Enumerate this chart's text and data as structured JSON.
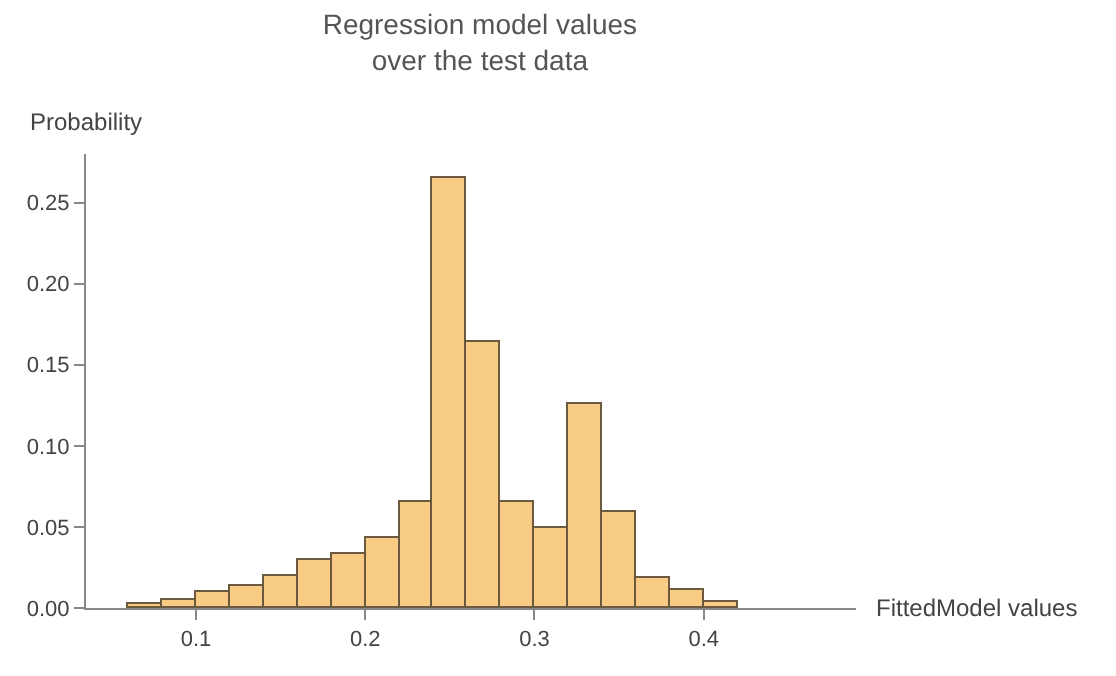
{
  "chart_data": {
    "type": "histogram",
    "title": "Regression model values\nover the test data",
    "xlabel": "FittedModel values",
    "ylabel": "Probability",
    "bins": [
      0.06,
      0.08,
      0.1,
      0.12,
      0.14,
      0.16,
      0.18,
      0.2,
      0.22,
      0.24,
      0.26,
      0.28,
      0.3,
      0.32,
      0.34,
      0.36,
      0.38,
      0.4,
      0.42
    ],
    "values": [
      0.003,
      0.005,
      0.01,
      0.014,
      0.02,
      0.03,
      0.033,
      0.043,
      0.065,
      0.265,
      0.164,
      0.065,
      0.049,
      0.126,
      0.059,
      0.019,
      0.011,
      0.004
    ],
    "color": "#f9cc85",
    "xlim": [
      0.035,
      0.49
    ],
    "xticks": [
      0.1,
      0.2,
      0.3,
      0.4
    ],
    "ylim": [
      0,
      0.28
    ],
    "yticks": [
      {
        "value": 0,
        "label": "0.00"
      },
      0.05,
      {
        "value": 0.1,
        "label": "0.10"
      },
      0.15,
      {
        "value": 0.2,
        "label": "0.20"
      },
      0.25
    ]
  }
}
